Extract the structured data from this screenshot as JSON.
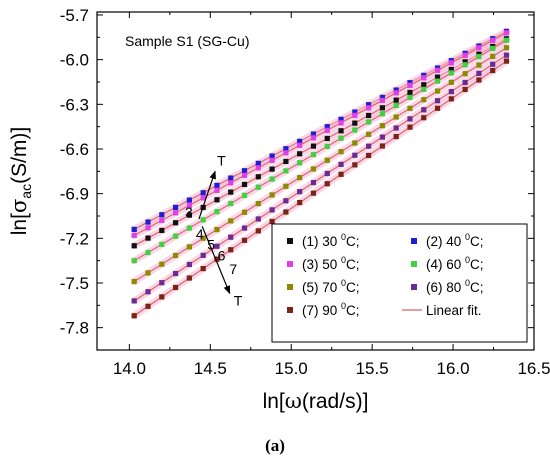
{
  "caption": "(a)",
  "chart_data": {
    "type": "scatter",
    "annotation": "Sample S1 (SG-Cu)",
    "xlabel": {
      "prefix": "ln[",
      "symbol": "ω",
      "suffix": "(rad/s)]"
    },
    "ylabel": {
      "prefix": "ln[",
      "symbol": "σ",
      "subscript": "ac",
      "suffix": "(S/m)]"
    },
    "xlim": [
      13.8,
      16.5
    ],
    "ylim": [
      -7.95,
      -5.68
    ],
    "x_ticks": [
      "14.0",
      "14.5",
      "15.0",
      "15.5",
      "16.0",
      "16.5"
    ],
    "y_ticks": [
      "-5.7",
      "-6.0",
      "-6.3",
      "-6.6",
      "-6.9",
      "-7.2",
      "-7.5",
      "-7.8"
    ],
    "x_start": 14.03,
    "x_end": 16.33,
    "n_points": 28,
    "series": [
      {
        "name": "(1) 30 °C;",
        "num": "(1) 30 ",
        "deg": "0",
        "unit": "C;",
        "color": "#111111",
        "y_start": -7.25,
        "y_end": -5.86,
        "marker": "square"
      },
      {
        "name": "(2) 40 °C;",
        "num": "(2) 40 ",
        "deg": "0",
        "unit": "C;",
        "color": "#1f1fd0",
        "y_start": -7.14,
        "y_end": -5.81,
        "marker": "square"
      },
      {
        "name": "(3) 50 °C;",
        "num": "(3) 50 ",
        "deg": "0",
        "unit": "C;",
        "color": "#e040e8",
        "y_start": -7.18,
        "y_end": -5.82,
        "marker": "square"
      },
      {
        "name": "(4) 60 °C;",
        "num": "(4) 60 ",
        "deg": "0",
        "unit": "C;",
        "color": "#40d040",
        "y_start": -7.35,
        "y_end": -5.87,
        "marker": "square"
      },
      {
        "name": "(5) 70 °C;",
        "num": "(5) 70 ",
        "deg": "0",
        "unit": "C;",
        "color": "#8b8b00",
        "y_start": -7.49,
        "y_end": -5.92,
        "marker": "square"
      },
      {
        "name": "(6) 80 °C;",
        "num": "(6) 80 ",
        "deg": "0",
        "unit": "C;",
        "color": "#6a2c91",
        "y_start": -7.62,
        "y_end": -5.97,
        "marker": "square"
      },
      {
        "name": "(7) 90 °C;",
        "num": "(7) 90 ",
        "deg": "0",
        "unit": "C;",
        "color": "#7a2418",
        "y_start": -7.72,
        "y_end": -6.01,
        "marker": "square"
      }
    ],
    "fit": {
      "name": "Linear fit.",
      "color": "#e06060"
    },
    "arrow_up": {
      "label_num": "3",
      "label_T": "T",
      "from": [
        14.43,
        -7.07
      ],
      "to": [
        14.53,
        -6.75
      ]
    },
    "arrow_down": {
      "labels": [
        "4",
        "5",
        "6",
        "7"
      ],
      "label_T": "T",
      "from": [
        14.45,
        -7.12
      ],
      "to": [
        14.62,
        -7.57
      ]
    },
    "grid": false,
    "legend_position": "bottom-right"
  }
}
